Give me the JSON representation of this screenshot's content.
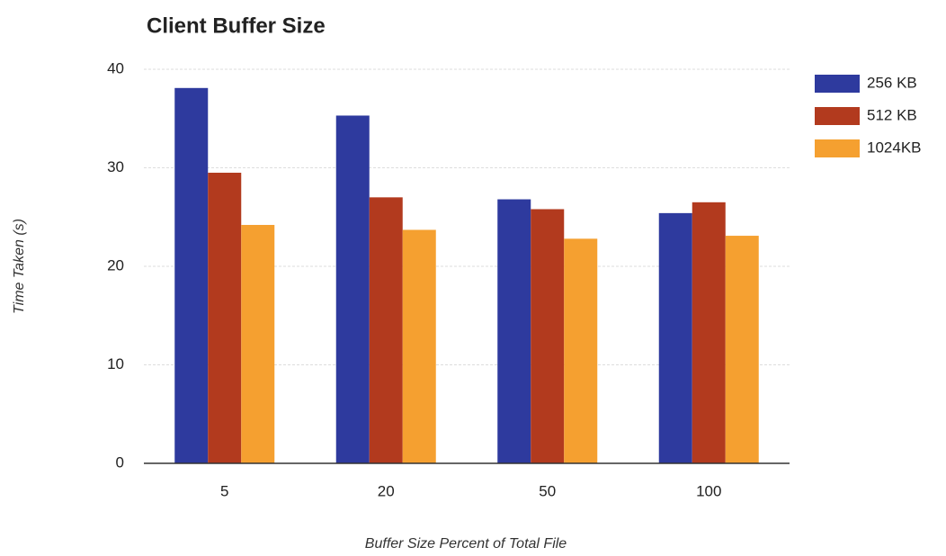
{
  "chart_data": {
    "type": "bar",
    "title": "Client Buffer Size",
    "x_label": "Buffer Size Percent of Total File",
    "y_label": "Time Taken (s)",
    "categories": [
      "5",
      "20",
      "50",
      "100"
    ],
    "series": [
      {
        "name": "256 KB",
        "color": "#2e3a9e",
        "values": [
          38.1,
          35.3,
          26.8,
          25.4
        ]
      },
      {
        "name": "512 KB",
        "color": "#b23a1e",
        "values": [
          29.5,
          27.0,
          25.8,
          26.5
        ]
      },
      {
        "name": "1024KB",
        "color": "#f5a030",
        "values": [
          24.2,
          23.7,
          22.8,
          23.1
        ]
      }
    ],
    "ylim": [
      0,
      40
    ],
    "yticks": [
      0,
      10,
      20,
      30,
      40
    ],
    "grid": true,
    "legend": "right"
  }
}
